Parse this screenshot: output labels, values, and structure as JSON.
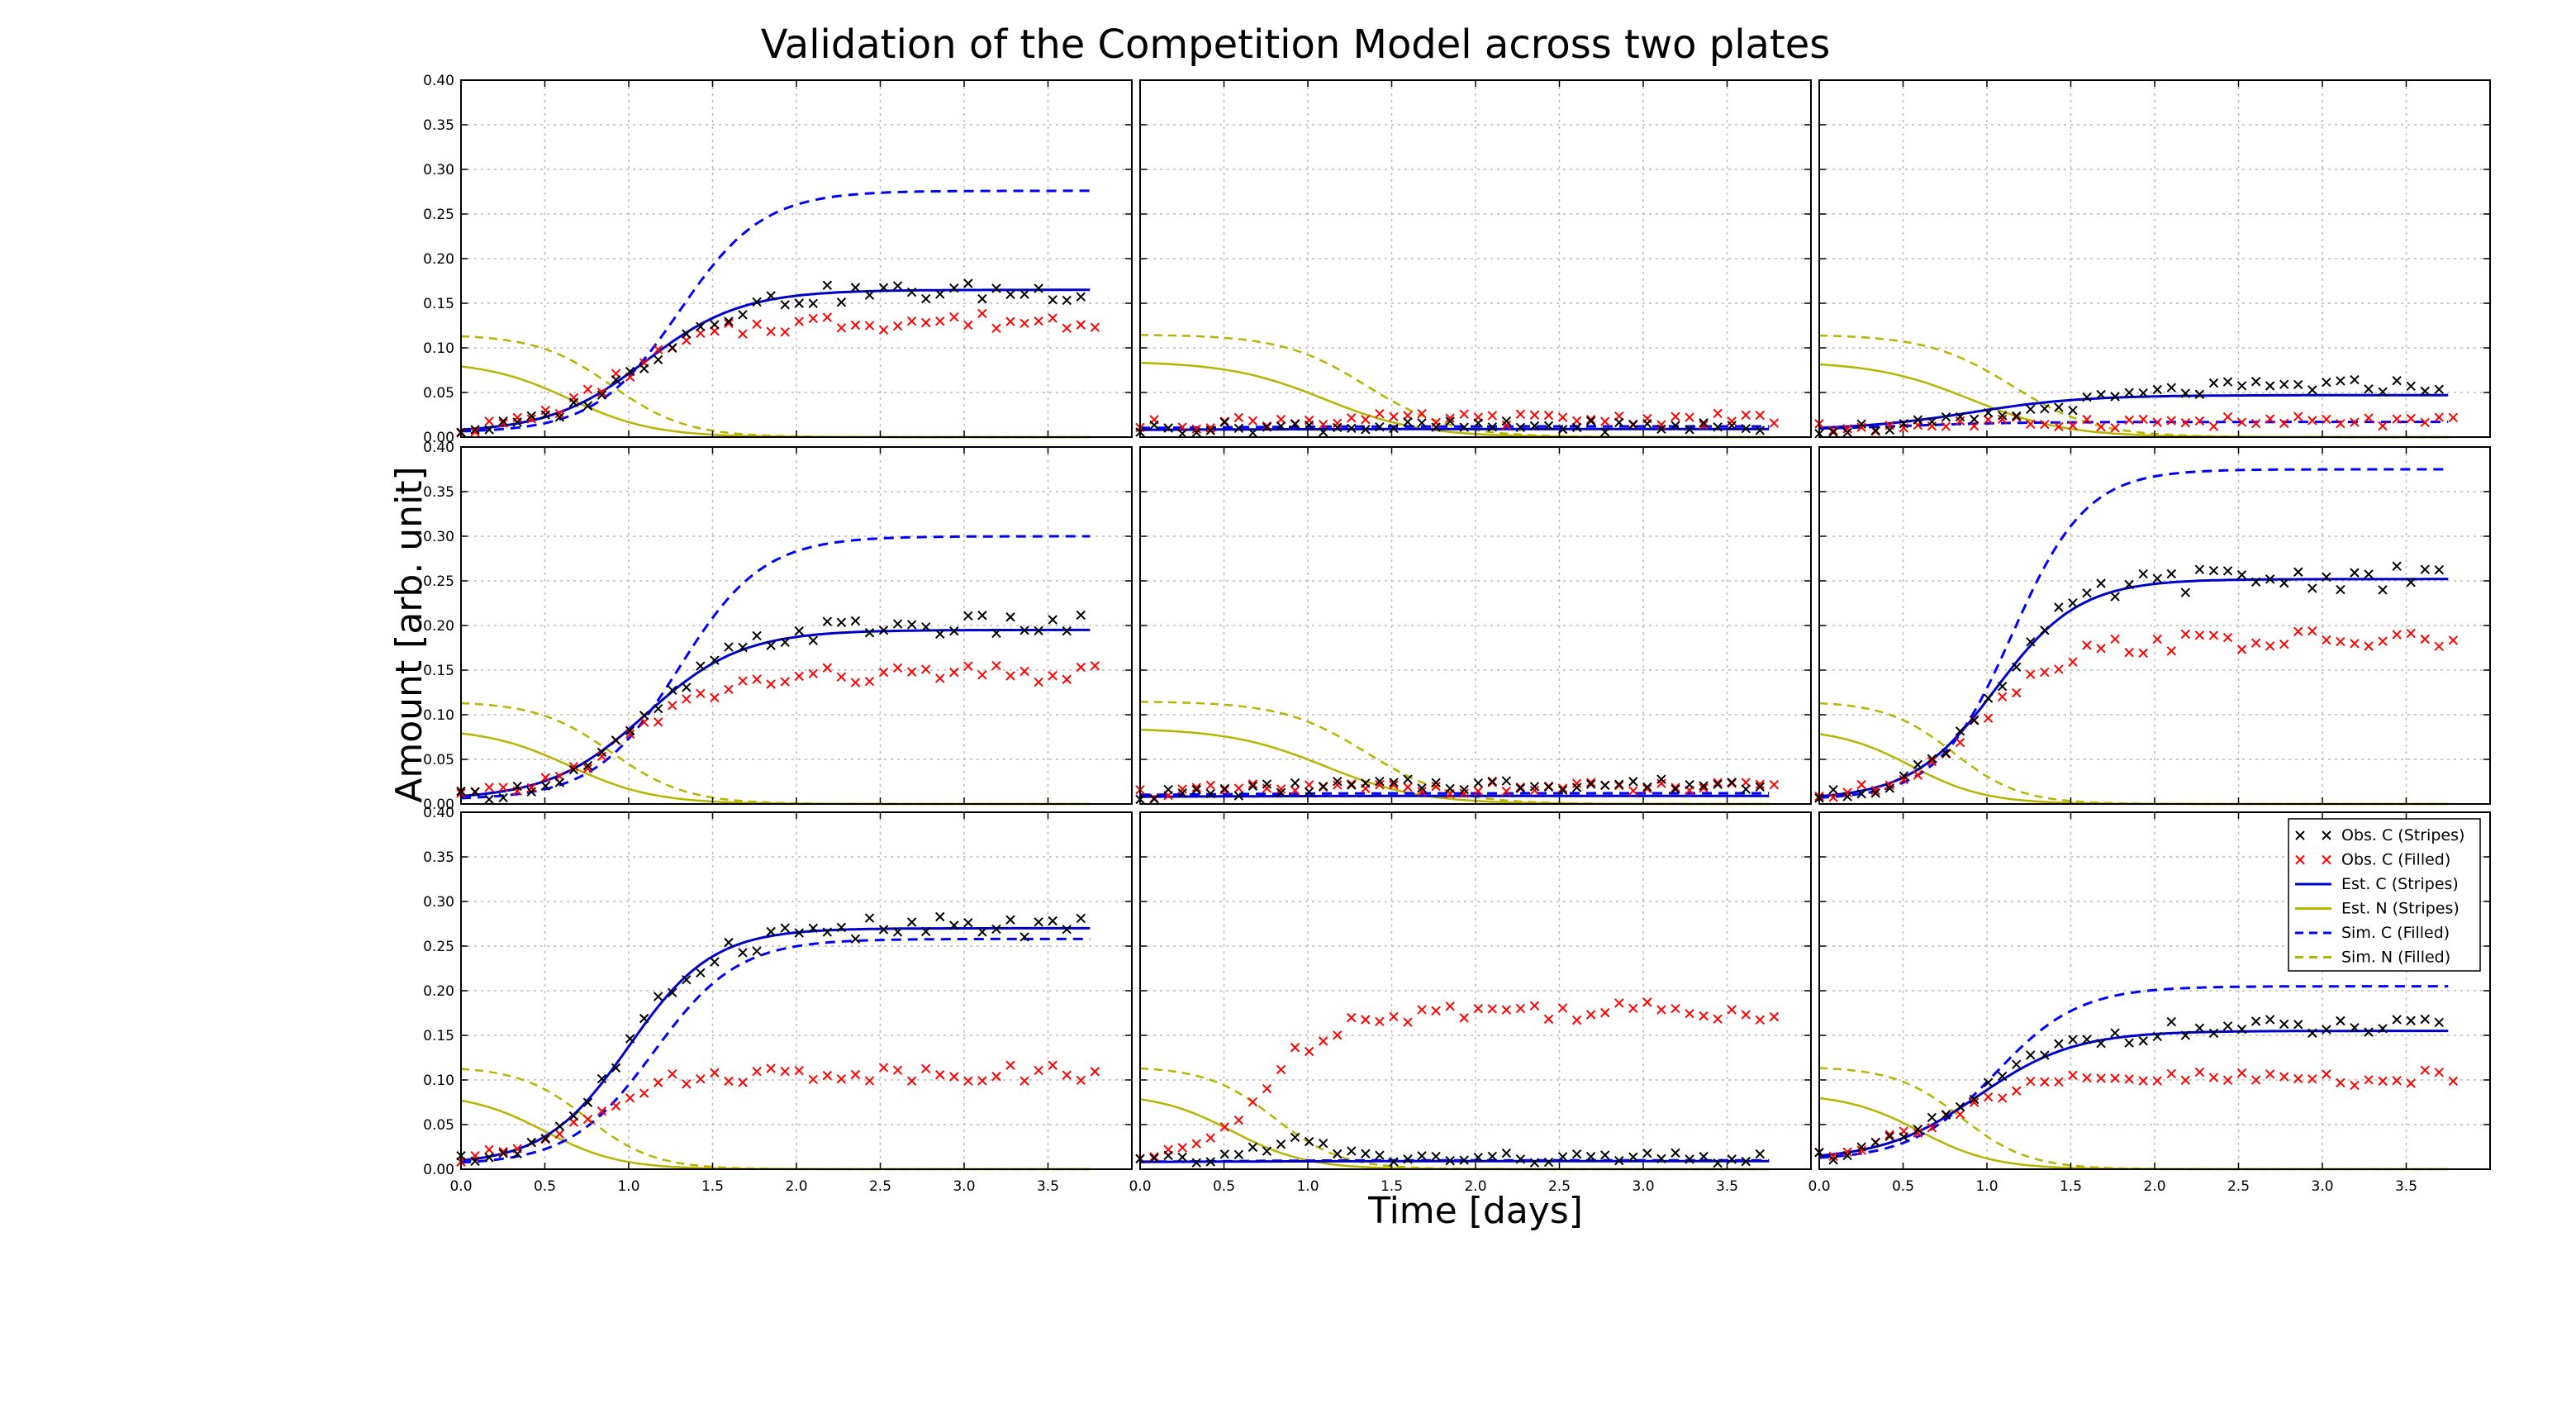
{
  "figure": {
    "title": "Validation of the Competition Model across two plates",
    "xlabel": "Time [days]",
    "ylabel": "Amount [arb. unit]"
  },
  "legend": {
    "placement": "bottom-right panel, top-right",
    "entries": [
      {
        "label": "Obs. C (Stripes)",
        "color": "#000000",
        "marker": "x"
      },
      {
        "label": "Obs. C (Filled)",
        "color": "#ff0000",
        "marker": "x"
      },
      {
        "label": "Est. C (Stripes)",
        "color": "#0000cc",
        "line": "solid"
      },
      {
        "label": "Est. N (Stripes)",
        "color": "#b5b500",
        "line": "solid"
      },
      {
        "label": "Sim. C (Filled)",
        "color": "#0000ff",
        "line": "dashed"
      },
      {
        "label": "Sim. N (Filled)",
        "color": "#b5b500",
        "line": "dashed"
      }
    ]
  },
  "chart_data": {
    "type": "line",
    "layout": "3x3 grid, shared axes",
    "grid": true,
    "xlim": [
      0,
      4.0
    ],
    "ylim": [
      0,
      0.4
    ],
    "xticks": [
      "0.0",
      "0.5",
      "1.0",
      "1.5",
      "2.0",
      "2.5",
      "3.0",
      "3.5"
    ],
    "yticks": [
      "0.00",
      "0.05",
      "0.10",
      "0.15",
      "0.20",
      "0.25",
      "0.30",
      "0.35",
      "0.40"
    ],
    "panels": [
      {
        "row": 1,
        "col": 1,
        "obs_stripes": {
          "plateau": 0.163,
          "t_mid": 1.1,
          "k": 3.5,
          "y0": 0.005
        },
        "obs_filled": {
          "plateau": 0.13,
          "t_mid": 0.95,
          "k": 3.5,
          "y0": 0.005
        },
        "est_c": {
          "plateau": 0.165,
          "t_mid": 1.1,
          "k": 3.5,
          "y0": 0.005
        },
        "est_n": {
          "start": 0.085,
          "t_mid": 0.65,
          "k": 4.0
        },
        "sim_c": {
          "plateau": 0.276,
          "t_mid": 1.3,
          "k": 4.0,
          "y0": 0.005
        },
        "sim_n": {
          "start": 0.115,
          "t_mid": 0.9,
          "k": 4.5
        }
      },
      {
        "row": 1,
        "col": 2,
        "obs_stripes": {
          "plateau": 0.012,
          "t_mid": 0.3,
          "k": 3.0,
          "y0": 0.008
        },
        "obs_filled": {
          "plateau": 0.02,
          "t_mid": 0.3,
          "k": 3.0,
          "y0": 0.01
        },
        "est_c": {
          "plateau": 0.009,
          "t_mid": 0.5,
          "k": 3.0,
          "y0": 0.008
        },
        "est_n": {
          "start": 0.085,
          "t_mid": 1.1,
          "k": 3.5
        },
        "sim_c": {
          "plateau": 0.012,
          "t_mid": 0.5,
          "k": 3.0,
          "y0": 0.01
        },
        "sim_n": {
          "start": 0.115,
          "t_mid": 1.35,
          "k": 4.0
        }
      },
      {
        "row": 1,
        "col": 3,
        "obs_stripes": {
          "plateau": 0.058,
          "t_mid": 1.4,
          "k": 2.5,
          "y0": 0.008
        },
        "obs_filled": {
          "plateau": 0.017,
          "t_mid": 0.5,
          "k": 3.0,
          "y0": 0.008
        },
        "est_c": {
          "plateau": 0.047,
          "t_mid": 0.9,
          "k": 3.0,
          "y0": 0.008
        },
        "est_n": {
          "start": 0.085,
          "t_mid": 0.9,
          "k": 3.5
        },
        "sim_c": {
          "plateau": 0.017,
          "t_mid": 0.5,
          "k": 3.0,
          "y0": 0.008
        },
        "sim_n": {
          "start": 0.115,
          "t_mid": 1.15,
          "k": 4.0
        }
      },
      {
        "row": 2,
        "col": 1,
        "obs_stripes": {
          "plateau": 0.2,
          "t_mid": 1.15,
          "k": 3.5,
          "y0": 0.005
        },
        "obs_filled": {
          "plateau": 0.145,
          "t_mid": 1.0,
          "k": 3.5,
          "y0": 0.005
        },
        "est_c": {
          "plateau": 0.195,
          "t_mid": 1.1,
          "k": 3.5,
          "y0": 0.005
        },
        "est_n": {
          "start": 0.085,
          "t_mid": 0.65,
          "k": 4.0
        },
        "sim_c": {
          "plateau": 0.3,
          "t_mid": 1.3,
          "k": 4.0,
          "y0": 0.005
        },
        "sim_n": {
          "start": 0.115,
          "t_mid": 0.9,
          "k": 4.5
        }
      },
      {
        "row": 2,
        "col": 2,
        "obs_stripes": {
          "plateau": 0.022,
          "t_mid": 0.6,
          "k": 3.0,
          "y0": 0.008
        },
        "obs_filled": {
          "plateau": 0.018,
          "t_mid": 0.3,
          "k": 3.0,
          "y0": 0.01
        },
        "est_c": {
          "plateau": 0.009,
          "t_mid": 0.5,
          "k": 3.0,
          "y0": 0.008
        },
        "est_n": {
          "start": 0.085,
          "t_mid": 1.1,
          "k": 3.5
        },
        "sim_c": {
          "plateau": 0.012,
          "t_mid": 0.5,
          "k": 3.0,
          "y0": 0.01
        },
        "sim_n": {
          "start": 0.115,
          "t_mid": 1.35,
          "k": 4.0
        }
      },
      {
        "row": 2,
        "col": 3,
        "obs_stripes": {
          "plateau": 0.253,
          "t_mid": 1.05,
          "k": 4.0,
          "y0": 0.005
        },
        "obs_filled": {
          "plateau": 0.183,
          "t_mid": 0.95,
          "k": 4.0,
          "y0": 0.005
        },
        "est_c": {
          "plateau": 0.252,
          "t_mid": 1.05,
          "k": 4.0,
          "y0": 0.005
        },
        "est_n": {
          "start": 0.085,
          "t_mid": 0.55,
          "k": 4.5
        },
        "sim_c": {
          "plateau": 0.375,
          "t_mid": 1.15,
          "k": 4.5,
          "y0": 0.005
        },
        "sim_n": {
          "start": 0.115,
          "t_mid": 0.8,
          "k": 5.0
        }
      },
      {
        "row": 3,
        "col": 1,
        "obs_stripes": {
          "plateau": 0.27,
          "t_mid": 1.0,
          "k": 4.0,
          "y0": 0.005
        },
        "obs_filled": {
          "plateau": 0.108,
          "t_mid": 0.7,
          "k": 4.0,
          "y0": 0.005
        },
        "est_c": {
          "plateau": 0.27,
          "t_mid": 1.0,
          "k": 4.0,
          "y0": 0.005
        },
        "est_n": {
          "start": 0.085,
          "t_mid": 0.5,
          "k": 4.5
        },
        "sim_c": {
          "plateau": 0.258,
          "t_mid": 1.15,
          "k": 4.0,
          "y0": 0.005
        },
        "sim_n": {
          "start": 0.115,
          "t_mid": 0.75,
          "k": 5.0
        }
      },
      {
        "row": 3,
        "col": 2,
        "obs_stripes": {
          "plateau": 0.012,
          "t_mid": 0.5,
          "k": 3.0,
          "y0": 0.008,
          "bump": 0.02,
          "bump_t": 0.9
        },
        "obs_filled": {
          "plateau": 0.178,
          "t_mid": 0.75,
          "k": 5.0,
          "y0": 0.008
        },
        "est_c": {
          "plateau": 0.009,
          "t_mid": 0.5,
          "k": 3.0,
          "y0": 0.008
        },
        "est_n": {
          "start": 0.085,
          "t_mid": 0.55,
          "k": 4.5
        },
        "sim_c": {
          "plateau": 0.01,
          "t_mid": 0.5,
          "k": 3.0,
          "y0": 0.008
        },
        "sim_n": {
          "start": 0.115,
          "t_mid": 0.8,
          "k": 5.0
        }
      },
      {
        "row": 3,
        "col": 3,
        "obs_stripes": {
          "plateau": 0.158,
          "t_mid": 0.95,
          "k": 3.5,
          "y0": 0.01
        },
        "obs_filled": {
          "plateau": 0.102,
          "t_mid": 0.7,
          "k": 3.5,
          "y0": 0.01
        },
        "est_c": {
          "plateau": 0.155,
          "t_mid": 0.95,
          "k": 3.5,
          "y0": 0.01
        },
        "est_n": {
          "start": 0.085,
          "t_mid": 0.6,
          "k": 4.5
        },
        "sim_c": {
          "plateau": 0.205,
          "t_mid": 1.05,
          "k": 4.0,
          "y0": 0.01
        },
        "sim_n": {
          "start": 0.115,
          "t_mid": 0.85,
          "k": 5.0
        }
      }
    ]
  }
}
